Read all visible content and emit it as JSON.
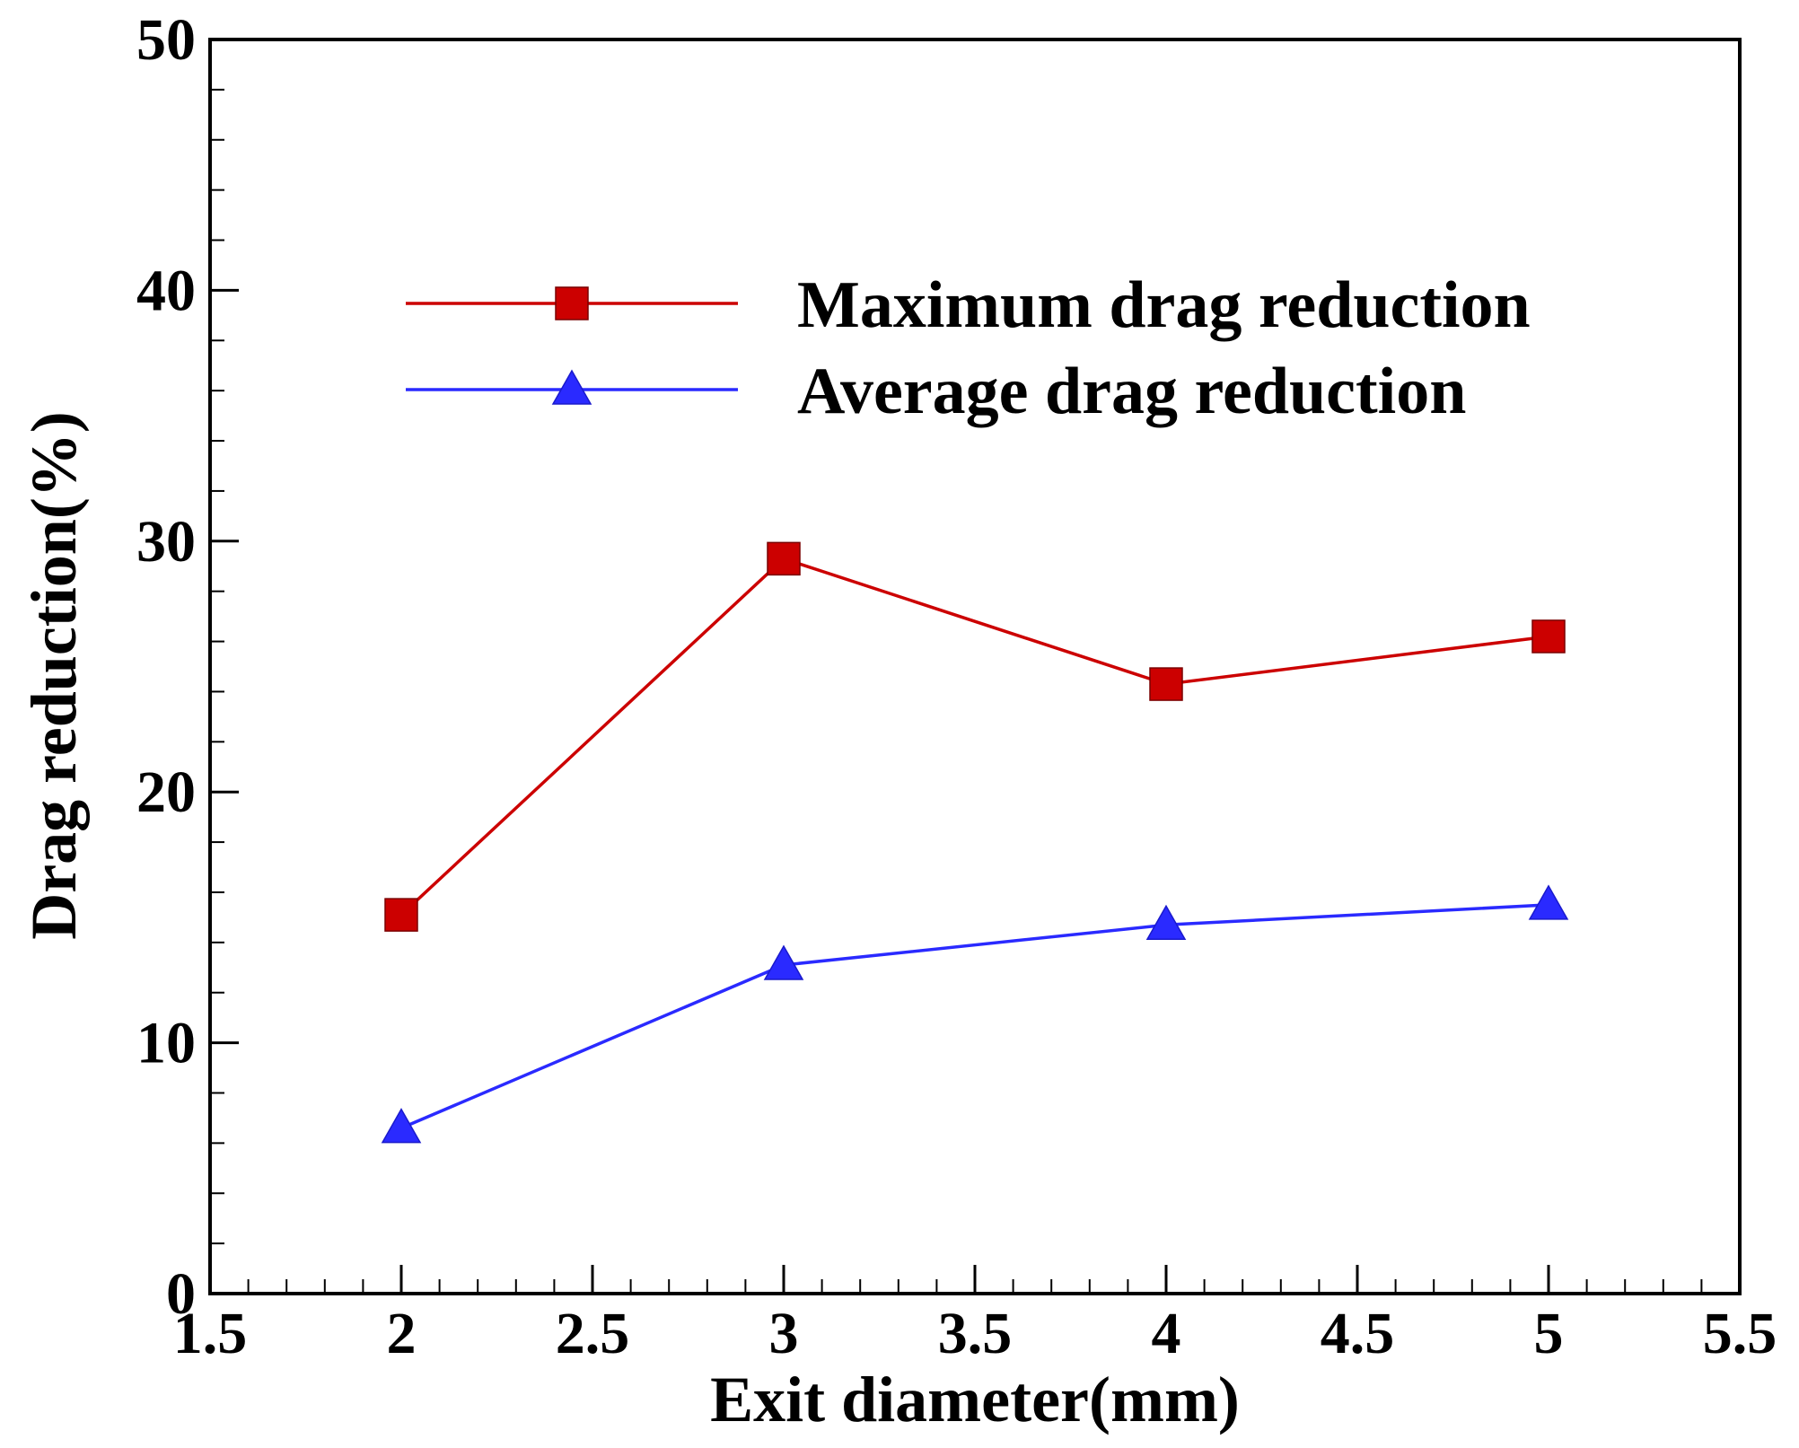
{
  "chart_data": {
    "type": "line",
    "title": "",
    "xlabel": "Exit diameter(mm)",
    "ylabel": "Drag reduction(%)",
    "xlim": [
      1.5,
      5.5
    ],
    "ylim": [
      0,
      50
    ],
    "x_ticks": [
      "1.5",
      "2",
      "2.5",
      "3",
      "3.5",
      "4",
      "4.5",
      "5",
      "5.5"
    ],
    "y_ticks": [
      "0",
      "10",
      "20",
      "30",
      "40",
      "50"
    ],
    "x_minor_step": 0.1,
    "y_minor_step": 2,
    "grid": false,
    "legend_position": "top-center",
    "x": [
      2,
      3,
      4,
      5
    ],
    "series": [
      {
        "name": "Maximum drag reduction",
        "values": [
          15.1,
          29.3,
          24.3,
          26.2
        ],
        "color": "#cc0000",
        "marker": "square"
      },
      {
        "name": "Average drag reduction",
        "values": [
          6.6,
          13.1,
          14.7,
          15.5
        ],
        "color": "#2a2aff",
        "marker": "triangle"
      }
    ]
  }
}
